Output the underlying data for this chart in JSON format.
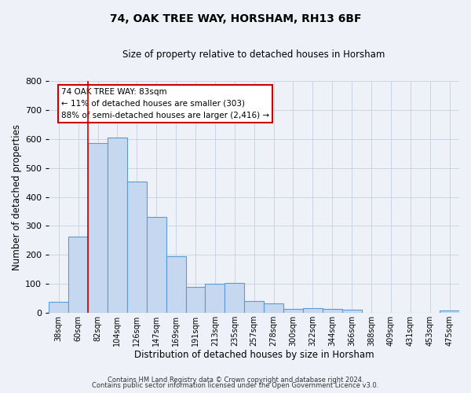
{
  "title": "74, OAK TREE WAY, HORSHAM, RH13 6BF",
  "subtitle": "Size of property relative to detached houses in Horsham",
  "xlabel": "Distribution of detached houses by size in Horsham",
  "ylabel": "Number of detached properties",
  "bar_labels": [
    "38sqm",
    "60sqm",
    "82sqm",
    "104sqm",
    "126sqm",
    "147sqm",
    "169sqm",
    "191sqm",
    "213sqm",
    "235sqm",
    "257sqm",
    "278sqm",
    "300sqm",
    "322sqm",
    "344sqm",
    "366sqm",
    "388sqm",
    "409sqm",
    "431sqm",
    "453sqm",
    "475sqm"
  ],
  "bar_heights": [
    37,
    263,
    585,
    604,
    452,
    330,
    196,
    90,
    100,
    103,
    40,
    32,
    14,
    16,
    13,
    10,
    0,
    0,
    0,
    0,
    8
  ],
  "bar_color": "#c5d8f0",
  "bar_edge_color": "#5b9bd5",
  "vline_x_index": 2,
  "vline_color": "#cc0000",
  "ylim": [
    0,
    800
  ],
  "yticks": [
    0,
    100,
    200,
    300,
    400,
    500,
    600,
    700,
    800
  ],
  "annotation_box_text_line1": "74 OAK TREE WAY: 83sqm",
  "annotation_box_text_line2": "← 11% of detached houses are smaller (303)",
  "annotation_box_text_line3": "88% of semi-detached houses are larger (2,416) →",
  "bg_color": "#eef2f8",
  "grid_color": "#c8d0de",
  "footer_line1": "Contains HM Land Registry data © Crown copyright and database right 2024.",
  "footer_line2": "Contains public sector information licensed under the Open Government Licence v3.0."
}
